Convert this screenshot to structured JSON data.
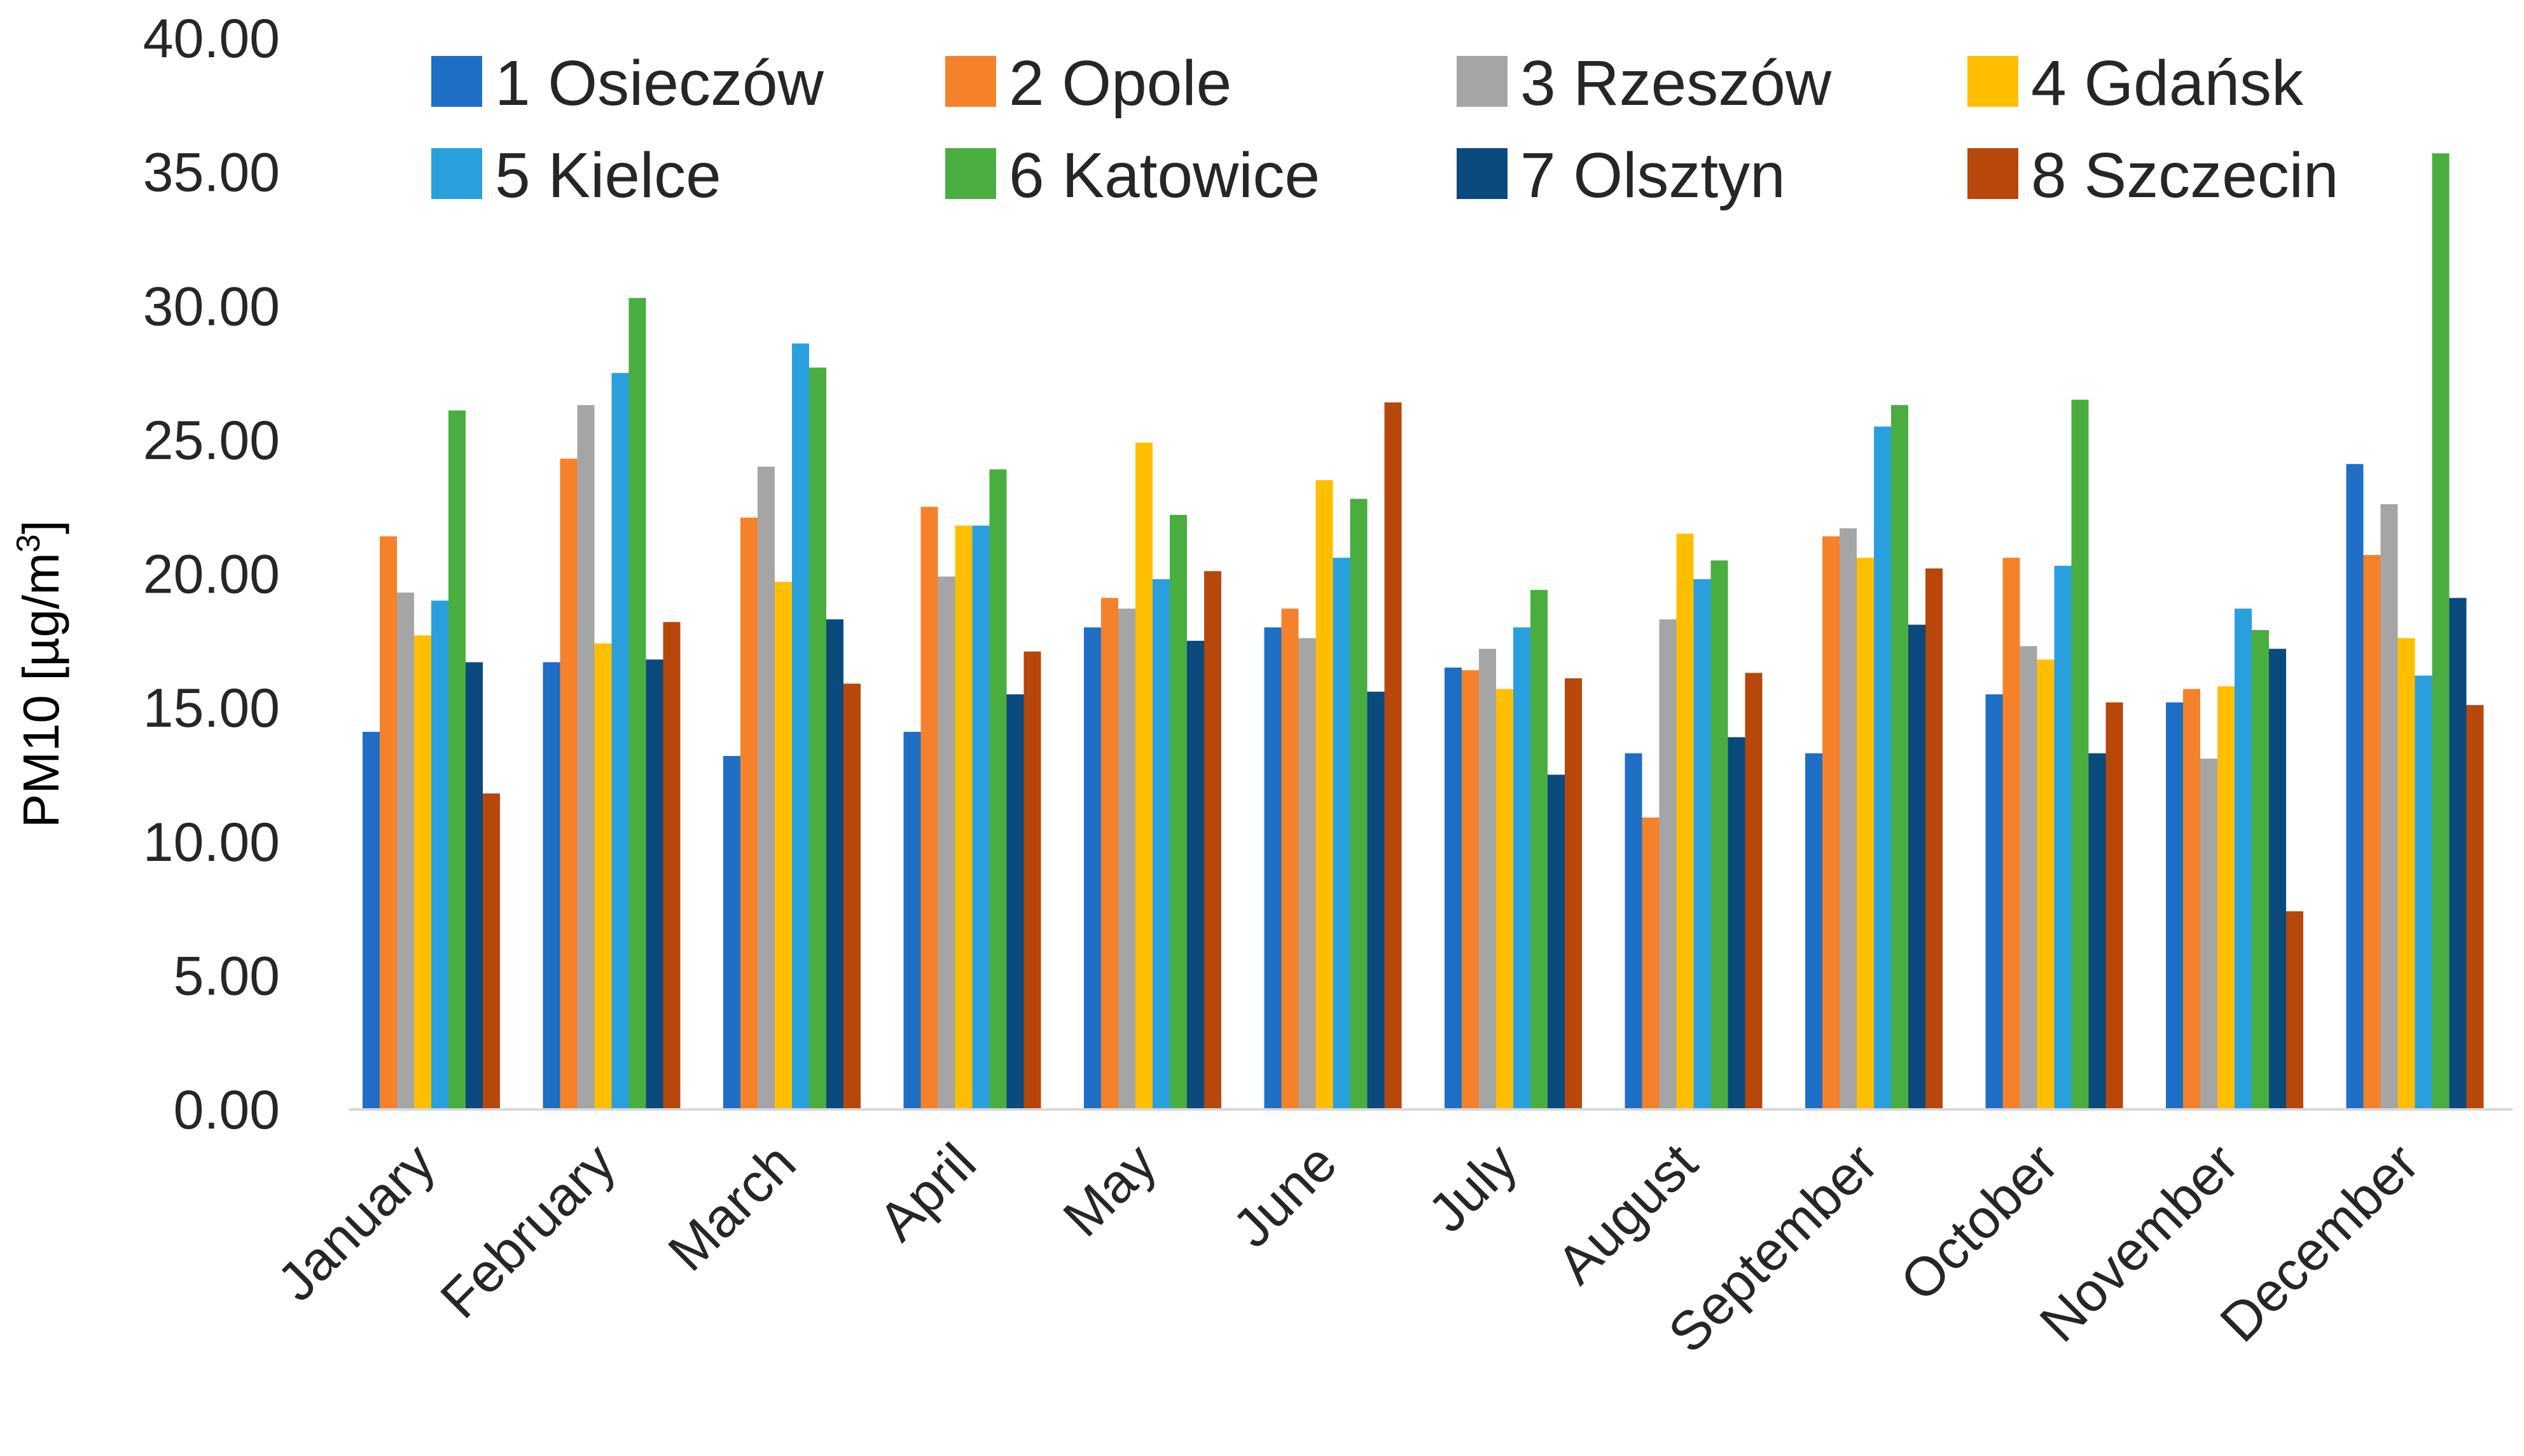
{
  "chart_data": {
    "type": "bar",
    "title": "",
    "xlabel": "",
    "ylabel": "PM10 [µg/m",
    "ylabel_sup": "3",
    "ylabel_close": "]",
    "ylim": [
      0,
      40
    ],
    "yticks": [
      "0.00",
      "5.00",
      "10.00",
      "15.00",
      "20.00",
      "25.00",
      "30.00",
      "35.00",
      "40.00"
    ],
    "categories": [
      "January",
      "February",
      "March",
      "April",
      "May",
      "June",
      "July",
      "August",
      "September",
      "October",
      "November",
      "December"
    ],
    "legend_position": "top",
    "series": [
      {
        "name": "1 Osieczów",
        "color": "#1f6fc6",
        "values": [
          14.1,
          16.7,
          13.2,
          14.1,
          18.0,
          18.0,
          16.5,
          13.3,
          13.3,
          15.5,
          15.2,
          24.1
        ]
      },
      {
        "name": "2 Opole",
        "color": "#f5822a",
        "values": [
          21.4,
          24.3,
          22.1,
          22.5,
          19.1,
          18.7,
          16.4,
          10.9,
          21.4,
          20.6,
          15.7,
          20.7
        ]
      },
      {
        "name": "3 Rzeszów",
        "color": "#a5a5a5",
        "values": [
          19.3,
          26.3,
          24.0,
          19.9,
          18.7,
          17.6,
          17.2,
          18.3,
          21.7,
          17.3,
          13.1,
          22.6
        ]
      },
      {
        "name": "4 Gdańsk",
        "color": "#ffbf00",
        "values": [
          17.7,
          17.4,
          19.7,
          21.8,
          24.9,
          23.5,
          15.7,
          21.5,
          20.6,
          16.8,
          15.8,
          17.6
        ]
      },
      {
        "name": "5 Kielce",
        "color": "#29a0dd",
        "values": [
          19.0,
          27.5,
          28.6,
          21.8,
          19.8,
          20.6,
          18.0,
          19.8,
          25.5,
          20.3,
          18.7,
          16.2
        ]
      },
      {
        "name": "6 Katowice",
        "color": "#4aad3f",
        "values": [
          26.1,
          30.3,
          27.7,
          23.9,
          22.2,
          22.8,
          19.4,
          20.5,
          26.3,
          26.5,
          17.9,
          35.7
        ]
      },
      {
        "name": "7 Olsztyn",
        "color": "#0a4a7c",
        "values": [
          16.7,
          16.8,
          18.3,
          15.5,
          17.5,
          15.6,
          12.5,
          13.9,
          18.1,
          13.3,
          17.2,
          19.1
        ]
      },
      {
        "name": "8 Szczecin",
        "color": "#b7470b",
        "values": [
          11.8,
          18.2,
          15.9,
          17.1,
          20.1,
          26.4,
          16.1,
          16.3,
          20.2,
          15.2,
          7.4,
          15.1
        ]
      }
    ]
  }
}
